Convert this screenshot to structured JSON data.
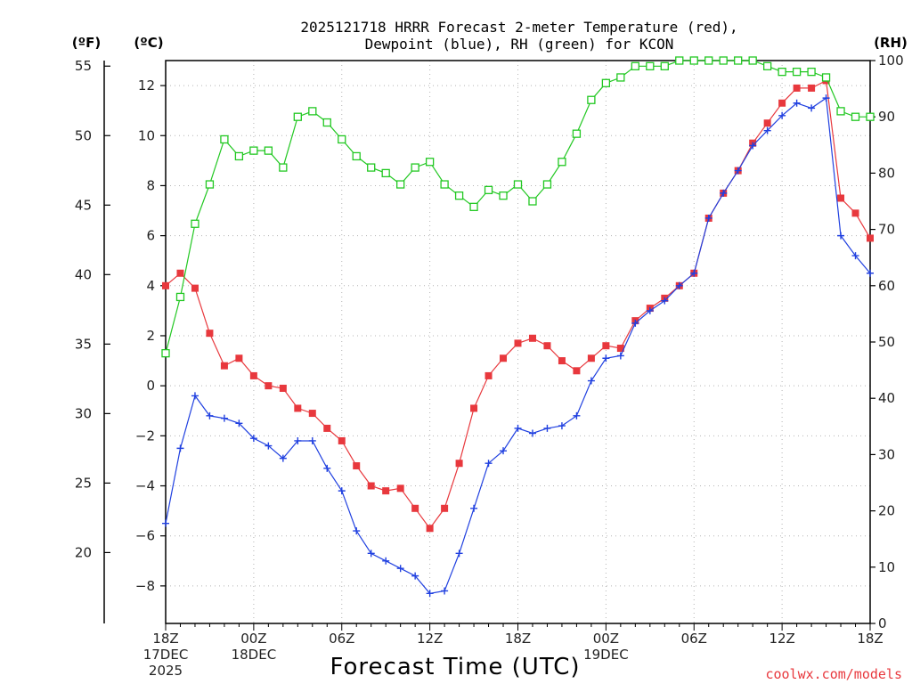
{
  "chart_data": {
    "type": "line",
    "title": [
      "2025121718 HRRR Forecast 2-meter Temperature (red),",
      "Dewpoint (blue), RH (green) for KCON"
    ],
    "xlabel": "Forecast Time (UTC)",
    "credit": "coolwx.com/models",
    "units": {
      "f": "(ºF)",
      "c": "(ºC)",
      "rh": "(RH)"
    },
    "x_range_hours": [
      0,
      48
    ],
    "x_ticks": [
      {
        "hour": 0,
        "lines": [
          "18Z",
          "17DEC",
          "2025"
        ]
      },
      {
        "hour": 6,
        "lines": [
          "00Z",
          "18DEC"
        ]
      },
      {
        "hour": 12,
        "lines": [
          "06Z"
        ]
      },
      {
        "hour": 18,
        "lines": [
          "12Z"
        ]
      },
      {
        "hour": 24,
        "lines": [
          "18Z"
        ]
      },
      {
        "hour": 30,
        "lines": [
          "00Z",
          "19DEC"
        ]
      },
      {
        "hour": 36,
        "lines": [
          "06Z"
        ]
      },
      {
        "hour": 42,
        "lines": [
          "12Z"
        ]
      },
      {
        "hour": 48,
        "lines": [
          "18Z"
        ]
      }
    ],
    "y_celsius": {
      "range": [
        -9.5,
        13.0
      ],
      "ticks": [
        12,
        10,
        8,
        6,
        4,
        2,
        0,
        -2,
        -4,
        -6,
        -8
      ],
      "tick_labels": [
        "12",
        "10",
        "8",
        "6",
        "4",
        "2",
        "0",
        "−2",
        "−4",
        "−6",
        "−8"
      ]
    },
    "y_fahrenheit": {
      "ticks": [
        55,
        50,
        45,
        40,
        35,
        30,
        25,
        20
      ]
    },
    "y_rh": {
      "range": [
        0,
        100
      ],
      "ticks": [
        100,
        90,
        80,
        70,
        60,
        50,
        40,
        30,
        20,
        10,
        0
      ]
    },
    "series": [
      {
        "name": "2-meter Temperature",
        "unit": "C",
        "color": "#e8383d",
        "marker": "filled-square",
        "values": [
          4.0,
          4.5,
          3.9,
          2.1,
          0.8,
          1.1,
          0.4,
          0.0,
          -0.1,
          -0.9,
          -1.1,
          -1.7,
          -2.2,
          -3.2,
          -4.0,
          -4.2,
          -4.1,
          -4.9,
          -5.7,
          -4.9,
          -3.1,
          -0.9,
          0.4,
          1.1,
          1.7,
          1.9,
          1.6,
          1.0,
          0.6,
          1.1,
          1.6,
          1.5,
          2.6,
          3.1,
          3.5,
          4.0,
          4.5,
          6.7,
          7.7,
          8.6,
          9.7,
          10.5,
          11.3,
          11.9,
          11.9,
          12.2,
          7.5,
          6.9,
          5.9
        ]
      },
      {
        "name": "Dewpoint",
        "unit": "C",
        "color": "#2040e0",
        "marker": "plus",
        "values": [
          -5.5,
          -2.5,
          -0.4,
          -1.2,
          -1.3,
          -1.5,
          -2.1,
          -2.4,
          -2.9,
          -2.2,
          -2.2,
          -3.3,
          -4.2,
          -5.8,
          -6.7,
          -7.0,
          -7.3,
          -7.6,
          -8.3,
          -8.2,
          -6.7,
          -4.9,
          -3.1,
          -2.6,
          -1.7,
          -1.9,
          -1.7,
          -1.6,
          -1.2,
          0.2,
          1.1,
          1.2,
          2.5,
          3.0,
          3.4,
          4.0,
          4.5,
          6.7,
          7.7,
          8.6,
          9.6,
          10.2,
          10.8,
          11.3,
          11.1,
          11.5,
          6.0,
          5.2,
          4.5
        ]
      },
      {
        "name": "Relative Humidity",
        "unit": "%",
        "color": "#22c822",
        "marker": "open-square",
        "values": [
          48,
          58,
          71,
          78,
          86,
          83,
          84,
          84,
          81,
          90,
          91,
          89,
          86,
          83,
          81,
          80,
          78,
          81,
          82,
          78,
          76,
          74,
          77,
          76,
          78,
          75,
          78,
          82,
          87,
          93,
          96,
          97,
          99,
          99,
          99,
          100,
          100,
          100,
          100,
          100,
          100,
          99,
          98,
          98,
          98,
          97,
          91,
          90,
          90
        ]
      }
    ]
  }
}
